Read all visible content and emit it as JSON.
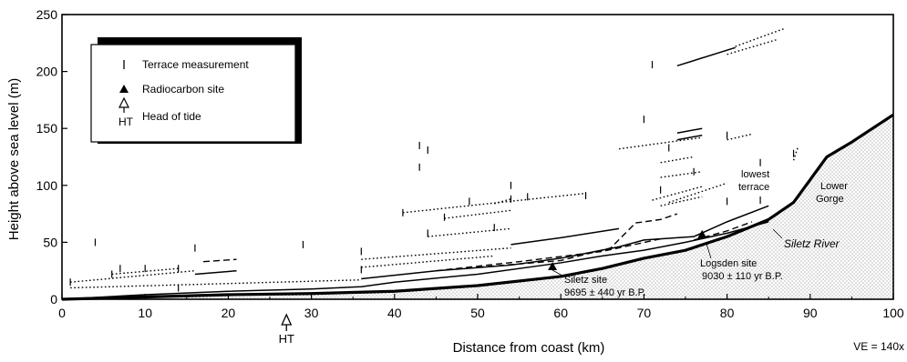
{
  "chart_data": {
    "type": "line",
    "xlabel": "Distance from coast (km)",
    "ylabel": "Height above sea level (m)",
    "xlim": [
      0,
      100
    ],
    "ylim": [
      0,
      250
    ],
    "xticks": [
      0,
      10,
      20,
      30,
      40,
      50,
      60,
      70,
      80,
      90,
      100
    ],
    "yticks": [
      0,
      50,
      100,
      150,
      200,
      250
    ],
    "legend": {
      "position": "top-left",
      "entries": [
        {
          "label": "Terrace measurement",
          "symbol": "tick"
        },
        {
          "label": "Radiocarbon site",
          "symbol": "filled-triangle"
        },
        {
          "label": "Head of tide",
          "symbol": "open-triangle-arrow",
          "sublabel": "HT"
        }
      ]
    },
    "annotations": {
      "ve": "VE = 140x",
      "ht": "HT",
      "lowest_terrace_1": "lowest",
      "lowest_terrace_2": "terrace",
      "lower_gorge_1": "Lower",
      "lower_gorge_2": "Gorge",
      "river": "Siletz River",
      "siletz_site_1": "Siletz site",
      "siletz_site_2": "9695 ± 440 yr B.P.",
      "logsden_site_1": "Logsden site",
      "logsden_site_2": "9030 ± 110 yr B.P."
    },
    "river_profile": {
      "name": "Siletz River",
      "x": [
        0,
        10,
        20,
        30,
        40,
        50,
        60,
        65,
        70,
        75,
        80,
        85,
        88,
        90,
        92,
        95,
        100
      ],
      "y": [
        0,
        2,
        4,
        5,
        7,
        12,
        20,
        27,
        36,
        43,
        55,
        70,
        85,
        105,
        125,
        138,
        162
      ]
    },
    "terraces": [
      {
        "style": "solid",
        "x": [
          0,
          10,
          20,
          30,
          36,
          40,
          50,
          60,
          65,
          70,
          75,
          80,
          85
        ],
        "y": [
          0,
          4,
          7,
          9,
          11,
          15,
          22,
          32,
          38,
          43,
          50,
          58,
          68
        ]
      },
      {
        "style": "solid",
        "x": [
          36,
          45,
          54,
          60,
          67,
          70,
          76,
          80,
          85
        ],
        "y": [
          18,
          25,
          30,
          36,
          46,
          52,
          55,
          68,
          82
        ]
      },
      {
        "style": "solid",
        "x": [
          54,
          60,
          67
        ],
        "y": [
          48,
          54,
          62
        ]
      },
      {
        "style": "dashed",
        "x": [
          45,
          55,
          65,
          72
        ],
        "y": [
          25,
          33,
          42,
          53
        ]
      },
      {
        "style": "dashed",
        "x": [
          50,
          60,
          66,
          69
        ],
        "y": [
          28,
          34,
          45,
          67
        ]
      },
      {
        "style": "dashed",
        "x": [
          69,
          72,
          74
        ],
        "y": [
          67,
          70,
          75
        ]
      },
      {
        "style": "dashed",
        "x": [
          76,
          80,
          83
        ],
        "y": [
          52,
          60,
          68
        ]
      },
      {
        "style": "solid",
        "x": [
          16,
          21
        ],
        "y": [
          22,
          25
        ]
      },
      {
        "style": "dashed",
        "x": [
          17,
          21
        ],
        "y": [
          33,
          35
        ]
      },
      {
        "style": "solid",
        "x": [
          74,
          81
        ],
        "y": [
          205,
          221
        ]
      },
      {
        "style": "solid",
        "x": [
          74,
          77
        ],
        "y": [
          140,
          144
        ]
      },
      {
        "style": "solid",
        "x": [
          74,
          77
        ],
        "y": [
          146,
          150
        ]
      },
      {
        "style": "dotted",
        "x": [
          1,
          16
        ],
        "y": [
          15,
          25
        ]
      },
      {
        "style": "dotted",
        "x": [
          1,
          36
        ],
        "y": [
          10,
          17
        ]
      },
      {
        "style": "dotted",
        "x": [
          6,
          14
        ],
        "y": [
          22,
          27
        ]
      },
      {
        "style": "dotted",
        "x": [
          36,
          54
        ],
        "y": [
          35,
          45
        ]
      },
      {
        "style": "dotted",
        "x": [
          36,
          52
        ],
        "y": [
          28,
          38
        ]
      },
      {
        "style": "dotted",
        "x": [
          41,
          63
        ],
        "y": [
          76,
          93
        ]
      },
      {
        "style": "dotted",
        "x": [
          46,
          54
        ],
        "y": [
          71,
          78
        ]
      },
      {
        "style": "dotted",
        "x": [
          44,
          54
        ],
        "y": [
          55,
          62
        ]
      },
      {
        "style": "dotted",
        "x": [
          52,
          54
        ],
        "y": [
          84,
          88
        ]
      },
      {
        "style": "dotted",
        "x": [
          67,
          77
        ],
        "y": [
          132,
          142
        ]
      },
      {
        "style": "dotted",
        "x": [
          72,
          76
        ],
        "y": [
          120,
          125
        ]
      },
      {
        "style": "dotted",
        "x": [
          72,
          77
        ],
        "y": [
          107,
          112
        ]
      },
      {
        "style": "dotted",
        "x": [
          71,
          77
        ],
        "y": [
          87,
          99
        ]
      },
      {
        "style": "dotted",
        "x": [
          72,
          77
        ],
        "y": [
          82,
          90
        ]
      },
      {
        "style": "dotted",
        "x": [
          73,
          80
        ],
        "y": [
          85,
          102
        ]
      },
      {
        "style": "dotted",
        "x": [
          80,
          86
        ],
        "y": [
          215,
          228
        ]
      },
      {
        "style": "dotted",
        "x": [
          81,
          87
        ],
        "y": [
          222,
          238
        ]
      },
      {
        "style": "dotted",
        "x": [
          80,
          83
        ],
        "y": [
          140,
          145
        ]
      },
      {
        "style": "dotted",
        "x": [
          88,
          88.5
        ],
        "y": [
          122,
          133
        ]
      }
    ],
    "measurements": [
      {
        "x": 1,
        "y": 15
      },
      {
        "x": 4,
        "y": 50
      },
      {
        "x": 6,
        "y": 22
      },
      {
        "x": 7,
        "y": 27
      },
      {
        "x": 10,
        "y": 27
      },
      {
        "x": 14,
        "y": 27
      },
      {
        "x": 14,
        "y": 10
      },
      {
        "x": 16,
        "y": 45
      },
      {
        "x": 29,
        "y": 48
      },
      {
        "x": 36,
        "y": 42
      },
      {
        "x": 36,
        "y": 26
      },
      {
        "x": 41,
        "y": 76
      },
      {
        "x": 43,
        "y": 135
      },
      {
        "x": 43,
        "y": 116
      },
      {
        "x": 44,
        "y": 131
      },
      {
        "x": 44,
        "y": 58
      },
      {
        "x": 46,
        "y": 72
      },
      {
        "x": 49,
        "y": 86
      },
      {
        "x": 52,
        "y": 63
      },
      {
        "x": 54,
        "y": 100
      },
      {
        "x": 54,
        "y": 88
      },
      {
        "x": 56,
        "y": 90
      },
      {
        "x": 63,
        "y": 91
      },
      {
        "x": 70,
        "y": 158
      },
      {
        "x": 71,
        "y": 206
      },
      {
        "x": 72,
        "y": 96
      },
      {
        "x": 73,
        "y": 133
      },
      {
        "x": 76,
        "y": 112
      },
      {
        "x": 80,
        "y": 86
      },
      {
        "x": 80,
        "y": 144
      },
      {
        "x": 84,
        "y": 120
      },
      {
        "x": 84,
        "y": 87
      },
      {
        "x": 88,
        "y": 128
      }
    ],
    "radiocarbon_sites": [
      {
        "name": "Siletz site",
        "x": 59,
        "y": 28
      },
      {
        "name": "Logsden site",
        "x": 77,
        "y": 56
      }
    ],
    "head_of_tide": {
      "x": 27,
      "label": "HT"
    }
  }
}
